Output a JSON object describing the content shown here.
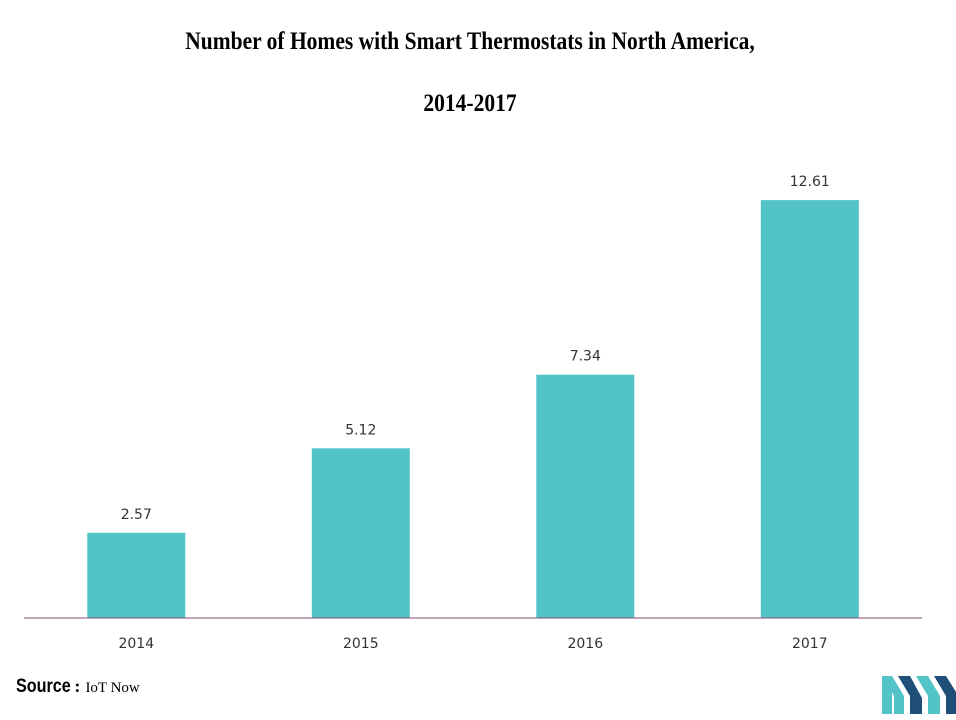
{
  "chart_data": {
    "type": "bar",
    "title": "Number of Homes with Smart Thermostats in North America,",
    "subtitle": "2014-2017",
    "categories": [
      "2014",
      "2015",
      "2016",
      "2017"
    ],
    "values": [
      2.57,
      5.12,
      7.34,
      12.61
    ],
    "data_labels": [
      "2.57",
      "5.12",
      "7.34",
      "12.61"
    ],
    "xlabel": "",
    "ylabel": "",
    "ylim": [
      0,
      14
    ],
    "grid": false,
    "legend": "none",
    "bar_color": "#52c4c7",
    "axis_color": "#8b4a73"
  },
  "source": {
    "label": "Source",
    "value": "IoT Now"
  },
  "logo": {
    "icon": "company-logo-icon",
    "colors": [
      "#1f4e79",
      "#52c4c7"
    ]
  }
}
